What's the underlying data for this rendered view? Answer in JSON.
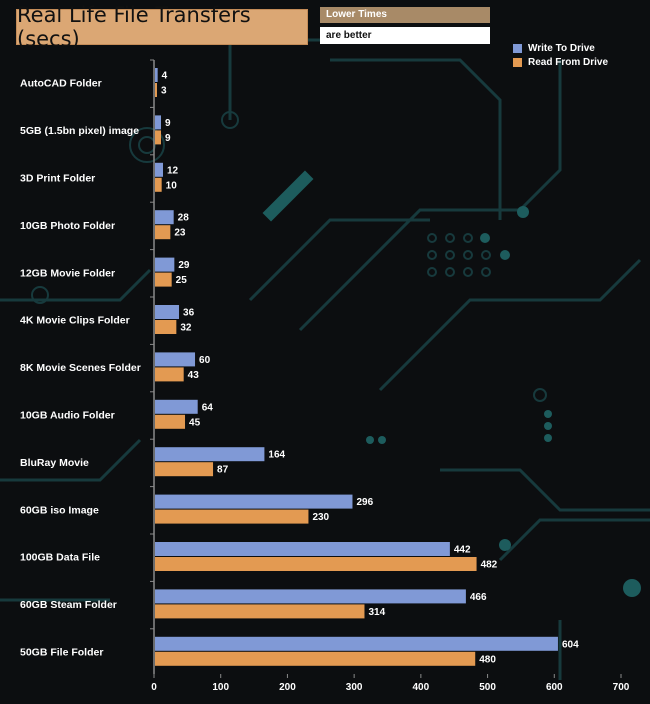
{
  "colors": {
    "write": "#8099d6",
    "read": "#e39a52",
    "background": "#0c0e10"
  },
  "header": {
    "title": "Real Life File Transfers (secs)",
    "note_line1": "Lower Times",
    "note_line2": "are better"
  },
  "chart_data": {
    "type": "bar",
    "orientation": "horizontal",
    "title": "Real Life File Transfers (secs)",
    "xlabel": "",
    "ylabel": "",
    "xlim": [
      0,
      700
    ],
    "x_ticks": [
      0,
      100,
      200,
      300,
      400,
      500,
      600,
      700
    ],
    "legend_position": "top-right",
    "categories": [
      "AutoCAD Folder",
      "5GB (1.5bn pixel) image",
      "3D Print Folder",
      "10GB Photo Folder",
      "12GB Movie Folder",
      "4K Movie Clips Folder",
      "8K Movie Scenes Folder",
      "10GB Audio Folder",
      "BluRay Movie",
      "60GB iso Image",
      "100GB Data File",
      "60GB Steam Folder",
      "50GB File Folder"
    ],
    "series": [
      {
        "name": "Write To  Drive",
        "values": [
          4,
          9,
          12,
          28,
          29,
          36,
          60,
          64,
          164,
          296,
          442,
          466,
          604
        ]
      },
      {
        "name": "Read From  Drive",
        "values": [
          3,
          9,
          10,
          23,
          25,
          32,
          43,
          45,
          87,
          230,
          482,
          314,
          480
        ]
      }
    ]
  }
}
